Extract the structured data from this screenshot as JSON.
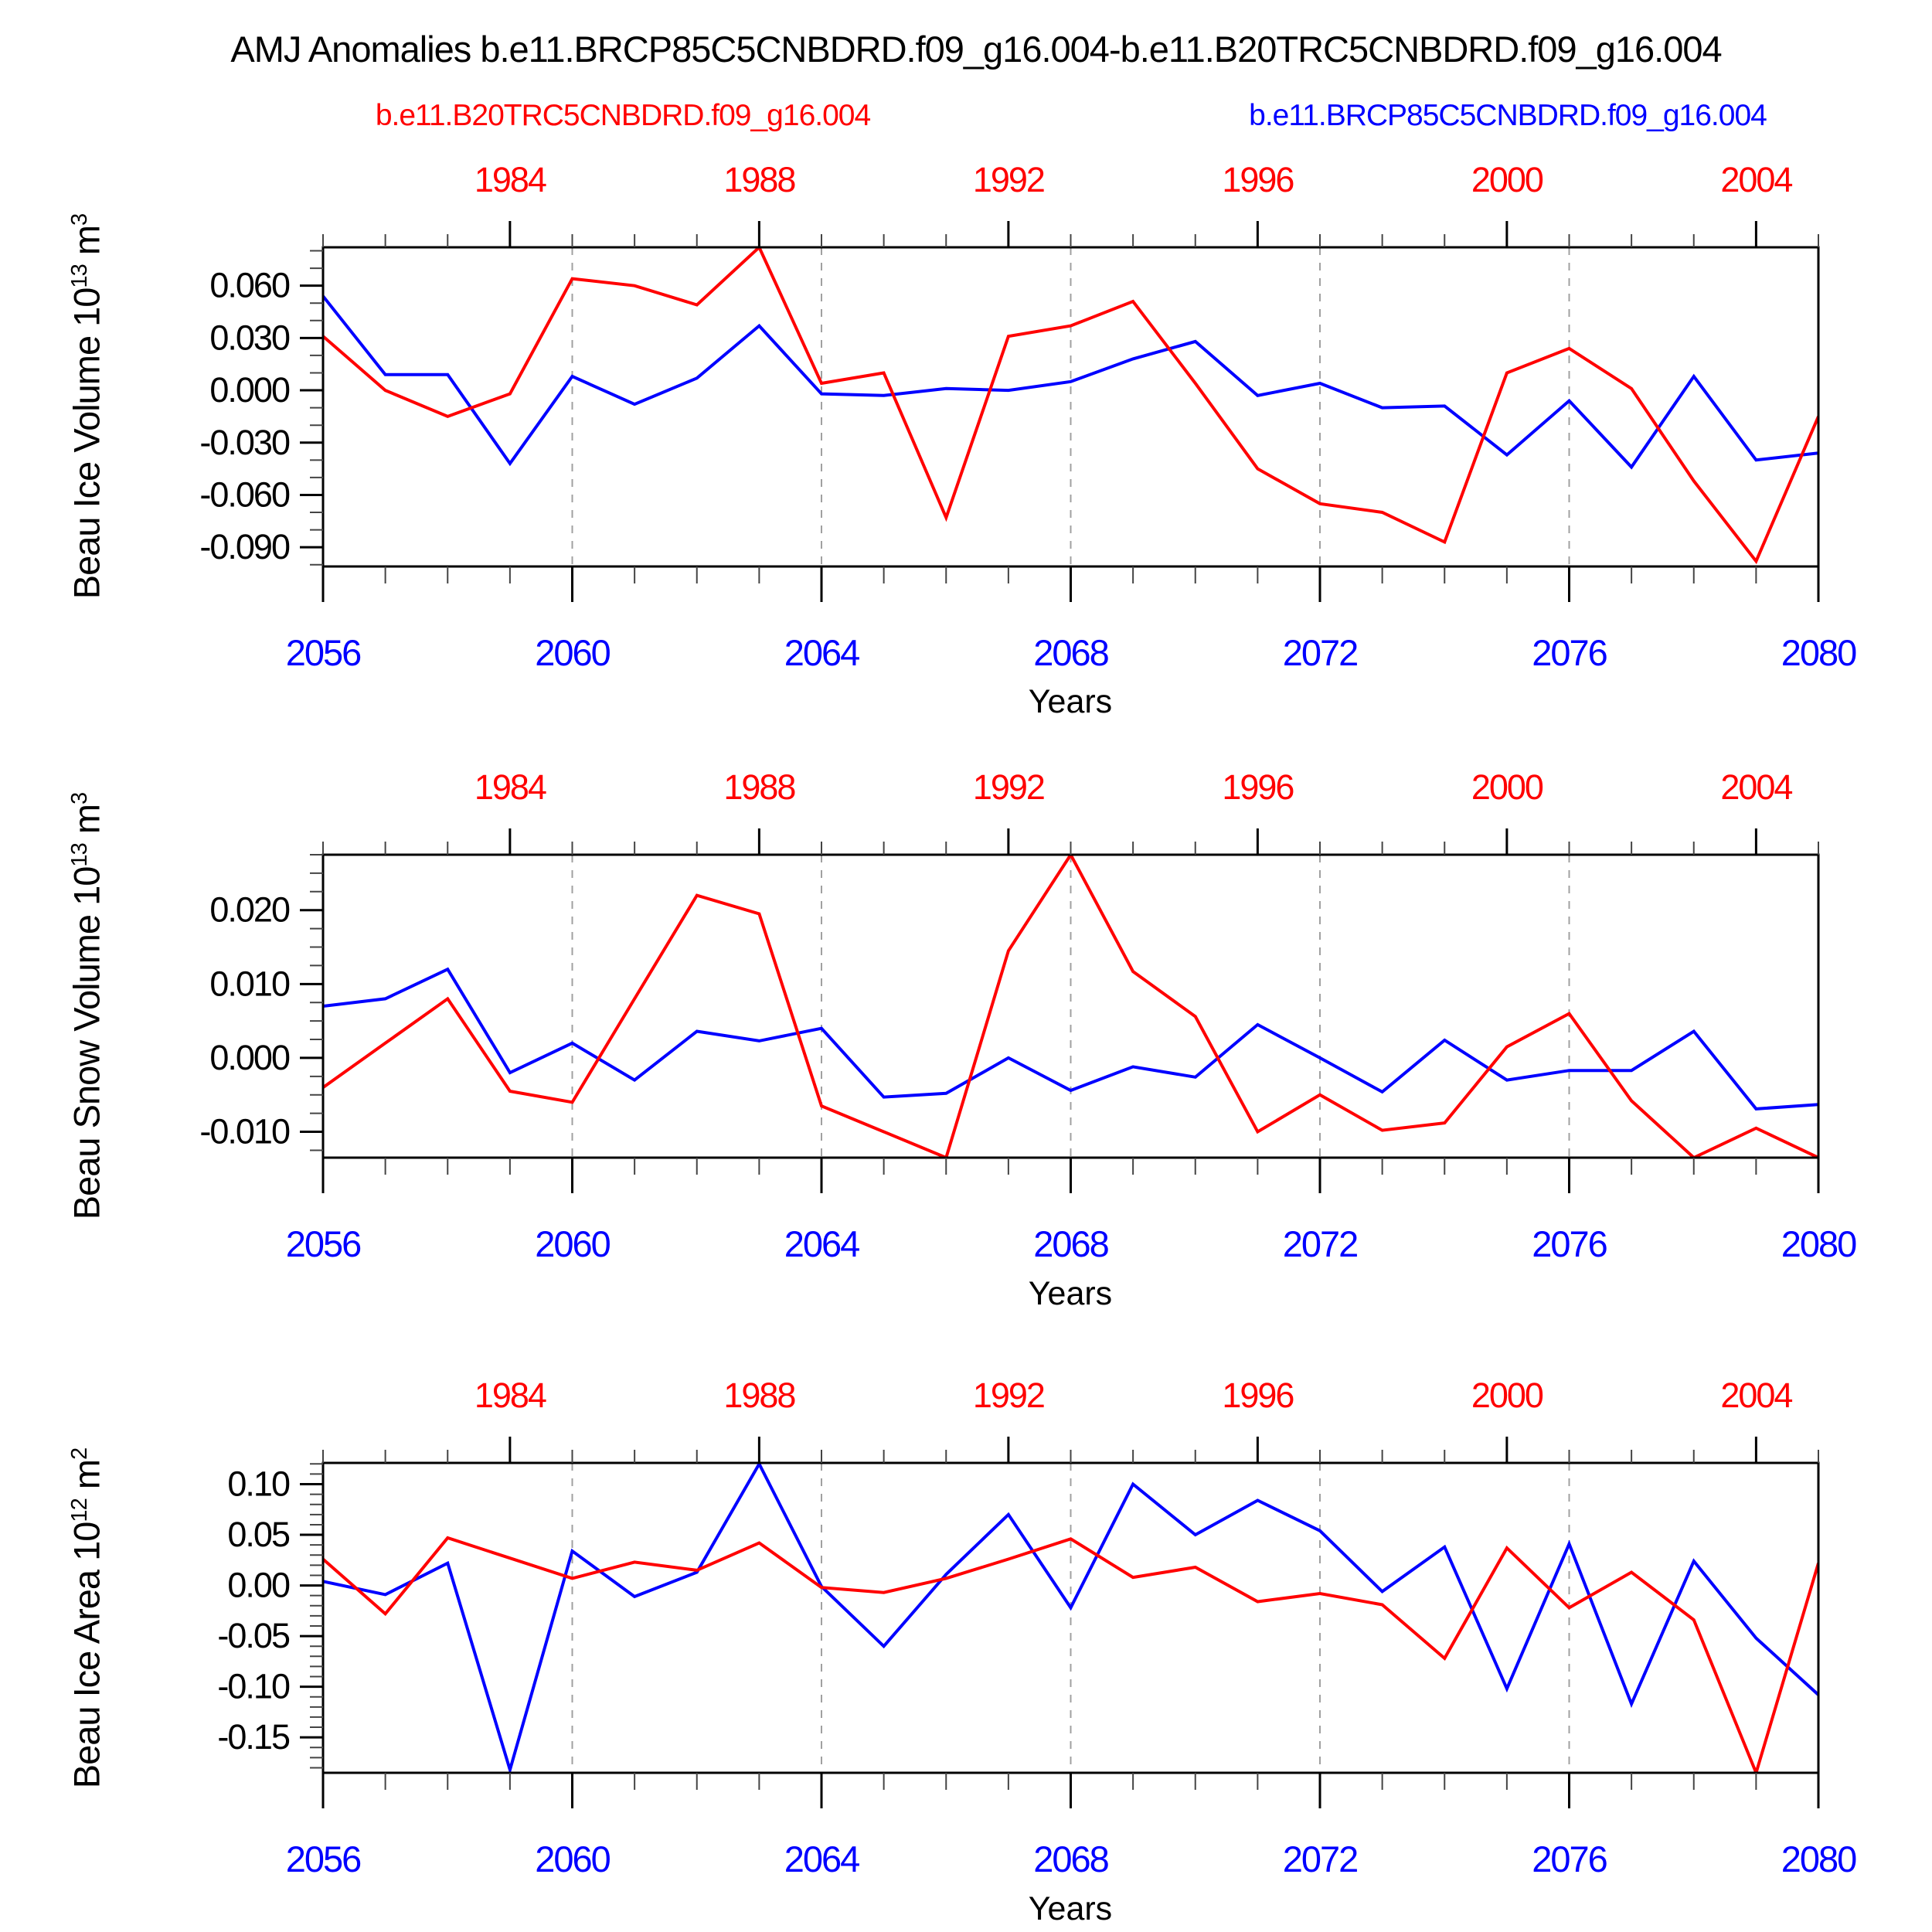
{
  "title": "AMJ Anomalies b.e11.BRCP85C5CNBDRD.f09_g16.004-b.e11.B20TRC5CNBDRD.f09_g16.004",
  "legend": {
    "red_label": "b.e11.B20TRC5CNBDRD.f09_g16.004",
    "blue_label": "b.e11.BRCP85C5CNBDRD.f09_g16.004"
  },
  "colors": {
    "red": "#ff0000",
    "blue": "#0000ff",
    "axis": "#000000",
    "minor_tick": "#444444",
    "grid": "#a0a0a0"
  },
  "x_axis": {
    "label": "Years",
    "n_points": 25,
    "bottom_years": [
      "2056",
      "2060",
      "2064",
      "2068",
      "2072",
      "2076",
      "2080"
    ],
    "bottom_major_indices": [
      0,
      4,
      8,
      12,
      16,
      20,
      24
    ],
    "top_years": [
      "1984",
      "1988",
      "1992",
      "1996",
      "2000",
      "2004"
    ],
    "top_major_indices": [
      3,
      7,
      11,
      15,
      19,
      23
    ],
    "grid_year_indices": [
      4,
      8,
      12,
      16,
      20
    ]
  },
  "chart_data": [
    {
      "type": "line",
      "id": "beau-ice-volume",
      "ylabel_parts": [
        "Beau Ice Volume 10",
        "13",
        " m",
        "3"
      ],
      "ylim": [
        -0.101,
        0.082
      ],
      "ytick_values": [
        0.06,
        0.03,
        0.0,
        -0.03,
        -0.06,
        -0.09
      ],
      "ytick_labels": [
        "0.060",
        "0.030",
        "0.000",
        "-0.030",
        "-0.060",
        "-0.090"
      ],
      "yminor_step": 0.01,
      "xlabel": "Years",
      "series": [
        {
          "name": "b.e11.B20TRC5CNBDRD.f09_g16.004",
          "color_key": "red",
          "values": [
            0.031,
            0.0,
            -0.015,
            -0.002,
            0.064,
            0.06,
            0.049,
            0.082,
            0.004,
            0.01,
            -0.073,
            0.031,
            0.037,
            0.051,
            0.004,
            -0.045,
            -0.065,
            -0.07,
            -0.087,
            0.01,
            0.024,
            0.001,
            -0.052,
            -0.098,
            -0.015
          ]
        },
        {
          "name": "b.e11.BRCP85C5CNBDRD.f09_g16.004",
          "color_key": "blue",
          "values": [
            0.054,
            0.009,
            0.009,
            -0.042,
            0.008,
            -0.008,
            0.007,
            0.037,
            -0.002,
            -0.003,
            0.001,
            0.0,
            0.005,
            0.018,
            0.028,
            -0.003,
            0.004,
            -0.01,
            -0.009,
            -0.037,
            -0.006,
            -0.044,
            0.008,
            -0.04,
            -0.036
          ]
        }
      ]
    },
    {
      "type": "line",
      "id": "beau-snow-volume",
      "ylabel_parts": [
        "Beau Snow Volume 10",
        "13",
        " m",
        "3"
      ],
      "ylim": [
        -0.0135,
        0.0275
      ],
      "ytick_values": [
        0.02,
        0.01,
        0.0,
        -0.01
      ],
      "ytick_labels": [
        "0.020",
        "0.010",
        "0.000",
        "-0.010"
      ],
      "yminor_step": 0.0025,
      "xlabel": "Years",
      "series": [
        {
          "name": "b.e11.B20TRC5CNBDRD.f09_g16.004",
          "color_key": "red",
          "values": [
            -0.004,
            0.002,
            0.008,
            -0.0045,
            -0.006,
            0.008,
            0.022,
            0.0195,
            -0.0065,
            -0.01,
            -0.0135,
            0.0145,
            0.0275,
            0.0117,
            0.0056,
            -0.01,
            -0.005,
            -0.0098,
            -0.0088,
            0.0015,
            0.006,
            -0.0058,
            -0.0135,
            -0.0095,
            -0.0135
          ]
        },
        {
          "name": "b.e11.BRCP85C5CNBDRD.f09_g16.004",
          "color_key": "blue",
          "values": [
            0.007,
            0.008,
            0.012,
            -0.002,
            0.002,
            -0.003,
            0.0036,
            0.0023,
            0.004,
            -0.0053,
            -0.0048,
            0.0,
            -0.0044,
            -0.0012,
            -0.0026,
            0.0045,
            0.0,
            -0.0046,
            0.0024,
            -0.003,
            -0.0017,
            -0.0017,
            0.0036,
            -0.0069,
            -0.0063
          ]
        }
      ]
    },
    {
      "type": "line",
      "id": "beau-ice-area",
      "ylabel_parts": [
        "Beau Ice Area 10",
        "12",
        " m",
        "2"
      ],
      "ylim": [
        -0.185,
        0.121
      ],
      "ytick_values": [
        0.1,
        0.05,
        0.0,
        -0.05,
        -0.1,
        -0.15
      ],
      "ytick_labels": [
        "0.10",
        "0.05",
        "0.00",
        "-0.05",
        "-0.10",
        "-0.15"
      ],
      "yminor_step": 0.01,
      "xlabel": "Years",
      "series": [
        {
          "name": "b.e11.B20TRC5CNBDRD.f09_g16.004",
          "color_key": "red",
          "values": [
            0.026,
            -0.028,
            0.047,
            0.027,
            0.007,
            0.023,
            0.015,
            0.042,
            -0.002,
            -0.007,
            0.007,
            0.026,
            0.046,
            0.008,
            0.018,
            -0.016,
            -0.008,
            -0.019,
            -0.072,
            0.037,
            -0.022,
            0.013,
            -0.034,
            -0.185,
            0.022
          ]
        },
        {
          "name": "b.e11.BRCP85C5CNBDRD.f09_g16.004",
          "color_key": "blue",
          "values": [
            0.004,
            -0.009,
            0.022,
            -0.182,
            0.034,
            -0.011,
            0.013,
            0.12,
            -0.001,
            -0.06,
            0.011,
            0.07,
            -0.022,
            0.1,
            0.05,
            0.084,
            0.054,
            -0.006,
            0.038,
            -0.102,
            0.041,
            -0.117,
            0.024,
            -0.052,
            -0.108
          ]
        }
      ]
    }
  ]
}
